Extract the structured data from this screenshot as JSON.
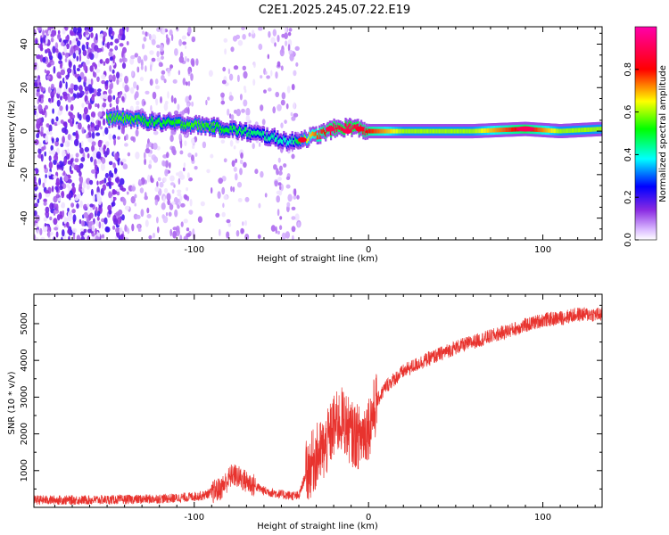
{
  "title": "C2E1.2025.245.07.22.E19",
  "chart_data": [
    {
      "type": "heatmap",
      "xlabel": "Height of straight line (km)",
      "ylabel": "Frequency (Hz)",
      "xlim": [
        -192,
        134
      ],
      "ylim": [
        -50,
        48
      ],
      "xticks": [
        -100,
        0,
        100
      ],
      "xtick_labels": [
        "-100",
        "0",
        "100"
      ],
      "yticks": [
        -40,
        -20,
        0,
        20,
        40
      ],
      "ytick_labels": [
        "-40",
        "-20",
        "0",
        "20",
        "40"
      ],
      "colorbar": {
        "label": "Normalized spectral amplitude",
        "range": [
          0,
          1
        ],
        "ticks": [
          0,
          0.2,
          0.4,
          0.6,
          0.8
        ],
        "tick_labels": [
          "0.0",
          "0.2",
          "0.4",
          "0.6",
          "0.8"
        ]
      },
      "ridge": {
        "description_points_x": [
          -140,
          -120,
          -100,
          -80,
          -60,
          -45,
          -30,
          -20,
          -10,
          0,
          20,
          60,
          90,
          110,
          134
        ],
        "frequency_y": [
          6,
          4,
          3,
          1,
          -2,
          -5,
          -2,
          1,
          2,
          0,
          0,
          0,
          1,
          0,
          1
        ],
        "amplitude": [
          0.55,
          0.5,
          0.55,
          0.5,
          0.45,
          0.4,
          0.75,
          0.85,
          0.9,
          0.8,
          0.6,
          0.6,
          0.85,
          0.6,
          0.6
        ]
      }
    },
    {
      "type": "line",
      "xlabel": "Height of straight line (km)",
      "ylabel": "SNR (10 * v/v)",
      "xlim": [
        -192,
        134
      ],
      "ylim": [
        0,
        5800
      ],
      "xticks": [
        -100,
        0,
        100
      ],
      "xtick_labels": [
        "-100",
        "0",
        "100"
      ],
      "yticks": [
        1000,
        2000,
        3000,
        4000,
        5000
      ],
      "ytick_labels": [
        "1000",
        "2000",
        "3000",
        "4000",
        "5000"
      ],
      "series": [
        {
          "name": "SNR",
          "color": "#e8332e",
          "x": [
            -192,
            -160,
            -130,
            -110,
            -95,
            -85,
            -78,
            -70,
            -60,
            -50,
            -40,
            -36,
            -30,
            -25,
            -20,
            -15,
            -10,
            -5,
            0,
            5,
            10,
            20,
            30,
            40,
            50,
            60,
            70,
            80,
            90,
            100,
            110,
            120,
            134
          ],
          "y": [
            200,
            200,
            220,
            250,
            320,
            500,
            900,
            700,
            450,
            350,
            300,
            900,
            1400,
            1600,
            2200,
            2400,
            2000,
            1900,
            2200,
            2900,
            3300,
            3700,
            3950,
            4150,
            4350,
            4500,
            4650,
            4800,
            4950,
            5100,
            5150,
            5250,
            5250
          ]
        }
      ]
    }
  ]
}
